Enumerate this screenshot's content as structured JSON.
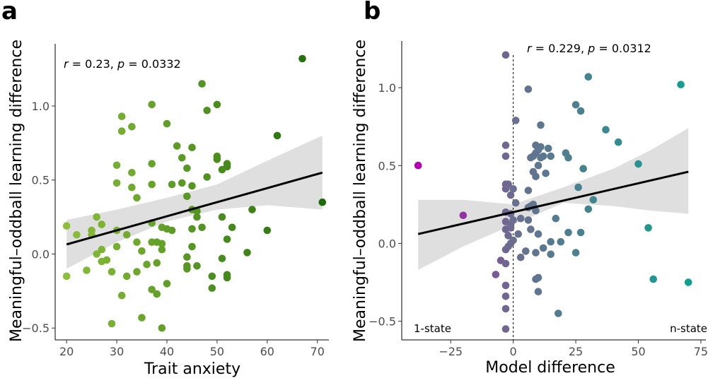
{
  "chart_data": [
    {
      "panel": "a",
      "type": "scatter",
      "xlabel": "Trait anxiety",
      "ylabel": "Meaningful–oddball learning difference",
      "xlim": [
        18,
        73
      ],
      "ylim": [
        -0.58,
        1.42
      ],
      "xticks": [
        20,
        30,
        40,
        50,
        60,
        70
      ],
      "yticks": [
        -0.5,
        0.0,
        0.5,
        1.0
      ],
      "ytick_labels": [
        "−0.5",
        "0.0",
        "0.5",
        "1.0"
      ],
      "stats": {
        "r": "0.23",
        "p": "0.0332"
      },
      "regression": {
        "x0": 20,
        "y0": 0.065,
        "x1": 71,
        "y1": 0.55
      },
      "ci_band": {
        "x": [
          20,
          30,
          40,
          50,
          60,
          71
        ],
        "lower": [
          -0.1,
          0.08,
          0.22,
          0.3,
          0.33,
          0.3
        ],
        "upper": [
          0.23,
          0.3,
          0.38,
          0.47,
          0.63,
          0.8
        ]
      },
      "color_scale": {
        "low": "#8cbf3a",
        "high": "#1e6b0a"
      },
      "points": [
        [
          20,
          0.19
        ],
        [
          20,
          -0.15
        ],
        [
          22,
          0.13
        ],
        [
          24,
          -0.11
        ],
        [
          25,
          0.16
        ],
        [
          25,
          0.13
        ],
        [
          26,
          0.25
        ],
        [
          26,
          0.0
        ],
        [
          27,
          0.2
        ],
        [
          27,
          0.03
        ],
        [
          27,
          -0.05
        ],
        [
          28,
          -0.04
        ],
        [
          29,
          -0.12
        ],
        [
          29,
          -0.47
        ],
        [
          30,
          0.16
        ],
        [
          30,
          0.05
        ],
        [
          30,
          0.48
        ],
        [
          30,
          0.6
        ],
        [
          31,
          0.93
        ],
        [
          31,
          0.83
        ],
        [
          31,
          -0.28
        ],
        [
          32,
          0.13
        ],
        [
          32,
          -0.15
        ],
        [
          33,
          0.86
        ],
        [
          33,
          0.55
        ],
        [
          33,
          0.45
        ],
        [
          34,
          0.38
        ],
        [
          34,
          0.08
        ],
        [
          34,
          -0.12
        ],
        [
          35,
          0.02
        ],
        [
          35,
          -0.43
        ],
        [
          36,
          -0.07
        ],
        [
          37,
          1.01
        ],
        [
          37,
          0.61
        ],
        [
          37,
          0.47
        ],
        [
          37,
          0.21
        ],
        [
          37,
          0.08
        ],
        [
          37,
          -0.24
        ],
        [
          38,
          -0.27
        ],
        [
          38,
          -0.06
        ],
        [
          38,
          0.08
        ],
        [
          39,
          0.07
        ],
        [
          39,
          0.03
        ],
        [
          39,
          -0.5
        ],
        [
          39,
          0.18
        ],
        [
          40,
          0.88
        ],
        [
          40,
          0.17
        ],
        [
          40,
          -0.2
        ],
        [
          41,
          0.47
        ],
        [
          41,
          0.16
        ],
        [
          42,
          0.73
        ],
        [
          43,
          0.65
        ],
        [
          43,
          0.48
        ],
        [
          44,
          0.58
        ],
        [
          44,
          0.39
        ],
        [
          44,
          -0.02
        ],
        [
          44,
          -0.08
        ],
        [
          44,
          -0.1
        ],
        [
          45,
          0.72
        ],
        [
          45,
          0.46
        ],
        [
          45,
          0.3
        ],
        [
          45,
          0.17
        ],
        [
          45,
          0.05
        ],
        [
          46,
          0.29
        ],
        [
          46,
          0.25
        ],
        [
          46,
          -0.08
        ],
        [
          47,
          1.15
        ],
        [
          47,
          0.18
        ],
        [
          48,
          0.97
        ],
        [
          48,
          0.52
        ],
        [
          49,
          -0.15
        ],
        [
          49,
          -0.23
        ],
        [
          50,
          1.01
        ],
        [
          50,
          0.66
        ],
        [
          50,
          0.64
        ],
        [
          51,
          0.57
        ],
        [
          51,
          0.25
        ],
        [
          51,
          -0.03
        ],
        [
          52,
          0.61
        ],
        [
          52,
          0.59
        ],
        [
          52,
          0.1
        ],
        [
          52,
          -0.14
        ],
        [
          52,
          -0.16
        ],
        [
          53,
          0.18
        ],
        [
          56,
          0.01
        ],
        [
          57,
          0.3
        ],
        [
          60,
          0.16
        ],
        [
          62,
          0.8
        ],
        [
          67,
          1.32
        ],
        [
          71,
          0.35
        ]
      ]
    },
    {
      "panel": "b",
      "type": "scatter",
      "xlabel": "Model difference",
      "ylabel": "Meaningful–oddball learning difference",
      "xlim": [
        -44,
        77
      ],
      "ylim": [
        -0.62,
        1.3
      ],
      "xticks": [
        -25,
        0,
        25,
        50,
        75
      ],
      "xtick_labels": [
        "−25",
        "0",
        "25",
        "50",
        "75"
      ],
      "yticks": [
        -0.5,
        0.0,
        0.5,
        1.0
      ],
      "ytick_labels": [
        "−0.5",
        "0.0",
        "0.5",
        "1.0"
      ],
      "stats": {
        "r": "0.229",
        "p": "0.0312"
      },
      "corner_labels": {
        "left": "1-state",
        "right": "n-state"
      },
      "reference_line_x": 0,
      "regression": {
        "x0": -38,
        "y0": 0.06,
        "x1": 70,
        "y1": 0.46
      },
      "ci_band": {
        "x": [
          -38,
          -20,
          0,
          20,
          40,
          55,
          70
        ],
        "lower": [
          -0.17,
          -0.02,
          0.12,
          0.26,
          0.24,
          0.21,
          0.19
        ],
        "upper": [
          0.28,
          0.28,
          0.25,
          0.36,
          0.48,
          0.6,
          0.74
        ]
      },
      "color_scale": {
        "low": "#b300b3",
        "mid": "#6b6f8f",
        "high": "#10a090"
      },
      "points": [
        [
          -38,
          0.5
        ],
        [
          -20,
          0.18
        ],
        [
          -7,
          -0.2
        ],
        [
          -5,
          -0.11
        ],
        [
          -3,
          1.21
        ],
        [
          -3,
          0.63
        ],
        [
          -3,
          0.56
        ],
        [
          -3,
          0.38
        ],
        [
          -3,
          0.35
        ],
        [
          -3,
          0.2
        ],
        [
          -3,
          0.14
        ],
        [
          -3,
          0.09
        ],
        [
          -3,
          -0.04
        ],
        [
          -3,
          -0.13
        ],
        [
          -3,
          -0.27
        ],
        [
          -3,
          -0.34
        ],
        [
          -3,
          -0.42
        ],
        [
          -3,
          -0.55
        ],
        [
          -2,
          0.38
        ],
        [
          -2,
          0.05
        ],
        [
          -2,
          -0.02
        ],
        [
          -1,
          0.31
        ],
        [
          -1,
          0.19
        ],
        [
          -1,
          0.12
        ],
        [
          -1,
          0.1
        ],
        [
          -1,
          0.0
        ],
        [
          0,
          0.35
        ],
        [
          0,
          0.15
        ],
        [
          0,
          0.02
        ],
        [
          1,
          0.79
        ],
        [
          1,
          0.26
        ],
        [
          2,
          0.06
        ],
        [
          3,
          0.16
        ],
        [
          3,
          -0.09
        ],
        [
          5,
          -0.05
        ],
        [
          6,
          0.99
        ],
        [
          6,
          0.34
        ],
        [
          6,
          0.23
        ],
        [
          6,
          0.15
        ],
        [
          7,
          0.55
        ],
        [
          7,
          0.24
        ],
        [
          7,
          0.09
        ],
        [
          8,
          0.56
        ],
        [
          8,
          0.46
        ],
        [
          8,
          0.25
        ],
        [
          9,
          0.63
        ],
        [
          9,
          0.58
        ],
        [
          9,
          0.43
        ],
        [
          9,
          0.21
        ],
        [
          9,
          -0.06
        ],
        [
          9,
          -0.23
        ],
        [
          10,
          0.6
        ],
        [
          10,
          0.5
        ],
        [
          10,
          0.06
        ],
        [
          10,
          -0.31
        ],
        [
          10,
          -0.22
        ],
        [
          11,
          0.76
        ],
        [
          11,
          0.62
        ],
        [
          11,
          0.55
        ],
        [
          12,
          0.56
        ],
        [
          12,
          -0.03
        ],
        [
          13,
          0.45
        ],
        [
          14,
          0.61
        ],
        [
          15,
          0.56
        ],
        [
          15,
          0.01
        ],
        [
          15,
          -0.07
        ],
        [
          17,
          0.16
        ],
        [
          18,
          -0.45
        ],
        [
          19,
          0.01
        ],
        [
          21,
          0.58
        ],
        [
          22,
          0.07
        ],
        [
          22,
          0.55
        ],
        [
          25,
          0.89
        ],
        [
          25,
          -0.06
        ],
        [
          26,
          0.36
        ],
        [
          27,
          0.85
        ],
        [
          27,
          0.07
        ],
        [
          28,
          0.48
        ],
        [
          30,
          1.07
        ],
        [
          30,
          0.22
        ],
        [
          32,
          0.28
        ],
        [
          37,
          0.73
        ],
        [
          42,
          0.65
        ],
        [
          50,
          0.51
        ],
        [
          54,
          0.1
        ],
        [
          56,
          -0.23
        ],
        [
          67,
          1.02
        ],
        [
          70,
          -0.25
        ]
      ]
    }
  ]
}
